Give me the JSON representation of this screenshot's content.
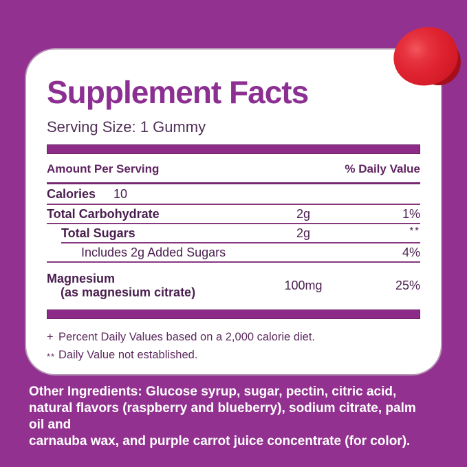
{
  "colors": {
    "background": "#933190",
    "card": "#ffffff",
    "title": "#8c2f92",
    "rule": "#8c2b88",
    "text_dark": "#491e4e",
    "footnote": "#5c2a5e",
    "ingredients_text": "#ffffff",
    "gummy_red": "#e02330",
    "gummy_dark_red": "#a50f1c"
  },
  "panel": {
    "title": "Supplement Facts",
    "serving_size": "Serving Size: 1 Gummy",
    "header": {
      "amount_label": "Amount Per Serving",
      "dv_label": "% Daily Value"
    },
    "calories": {
      "label": "Calories",
      "value": "10"
    },
    "rows": [
      {
        "name": "Total Carbohydrate",
        "amount": "2g",
        "dv": "1%"
      },
      {
        "name": "Total Sugars",
        "amount": "2g",
        "dv": "**"
      },
      {
        "name": "Includes 2g Added Sugars",
        "amount": "",
        "dv": "4%"
      },
      {
        "name": "Magnesium",
        "name_sub": "(as magnesium citrate)",
        "amount": "100mg",
        "dv": "25%"
      }
    ],
    "footnotes": [
      {
        "marker": "+",
        "text": "Percent Daily Values based on a 2,000 calorie diet."
      },
      {
        "marker": "**",
        "text": "Daily Value not established."
      }
    ]
  },
  "ingredients": {
    "label": "Other Ingredients:",
    "line1_rest": " Glucose syrup, sugar, pectin, citric acid,",
    "line2": "natural flavors (raspberry and blueberry), sodium citrate, palm oil and",
    "line3": "carnauba wax, and purple carrot juice concentrate (for color)."
  }
}
